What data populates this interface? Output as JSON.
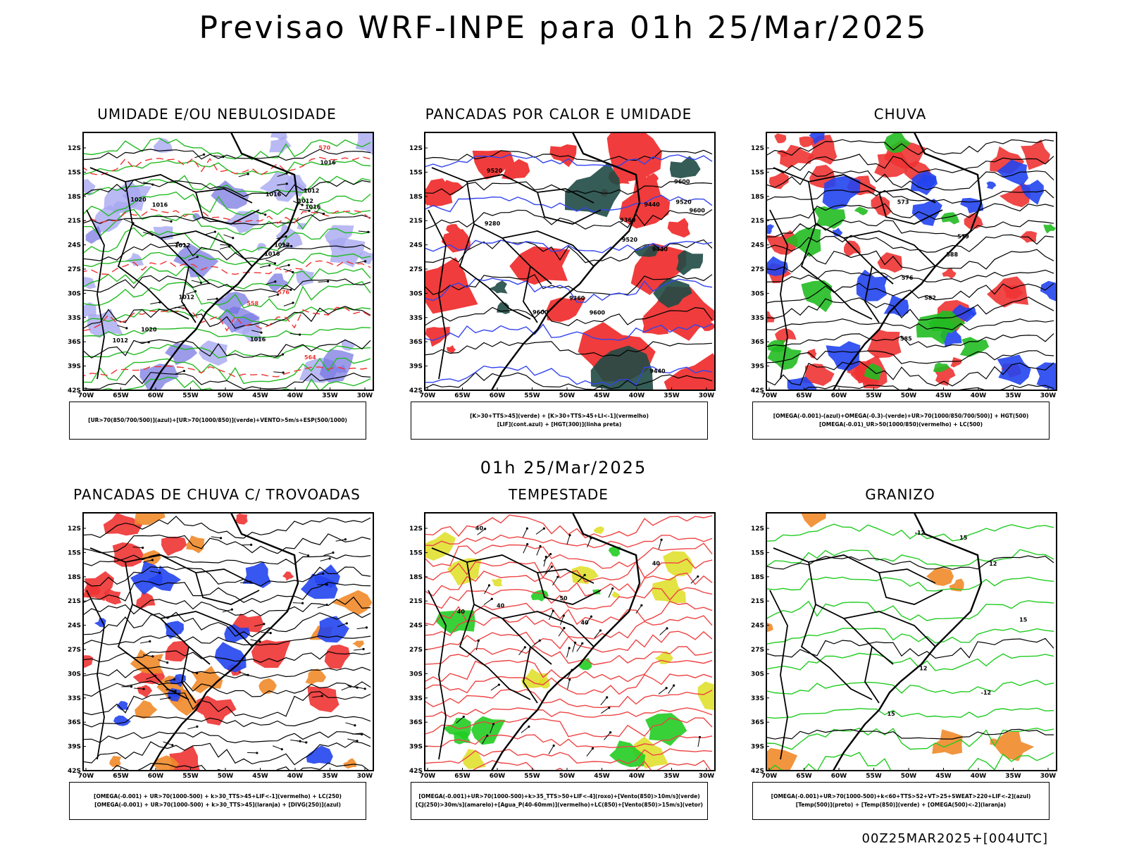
{
  "header": {
    "title": "Previsao WRF-INPE  para 01h 25/Mar/2025"
  },
  "middle": {
    "title": "01h 25/Mar/2025"
  },
  "footer": {
    "run": "00Z25MAR2025+[004UTC]"
  },
  "axes": {
    "lat_labels": [
      "12S",
      "15S",
      "18S",
      "21S",
      "24S",
      "27S",
      "30S",
      "33S",
      "36S",
      "39S",
      "42S"
    ],
    "lon_labels": [
      "70W",
      "65W",
      "60W",
      "55W",
      "50W",
      "45W",
      "40W",
      "35W",
      "30W"
    ]
  },
  "panels": [
    {
      "title": "UMIDADE E/OU NEBULOSIDADE",
      "legend": [
        "[UR>70(850/700/500)](azul)+[UR>70(1000/850)](verde)+VENTO>5m/s+ESP(500/1000)"
      ],
      "contour_labels": [
        "1016",
        "1012",
        "1020",
        "1012",
        "1016",
        "1012",
        "1016",
        "1012",
        "1016",
        "1016",
        "1012",
        "1020",
        "1016",
        "1012",
        "576",
        "570",
        "564",
        "558"
      ]
    },
    {
      "title": "PANCADAS POR CALOR E UMIDADE",
      "legend": [
        "[K>30+TTS>45](verde) + [K>30+TTS>45+LI<-1](vermelho)",
        "[LIF](cont.azul) + [HGT(300)](linha preta)"
      ],
      "contour_labels": [
        "9600",
        "9520",
        "9440",
        "9600",
        "9600",
        "9520",
        "9520",
        "9440",
        "9440",
        "9360",
        "9360",
        "9280",
        "9600"
      ]
    },
    {
      "title": "CHUVA",
      "legend": [
        "[OMEGA(-0.001)-(azul)+OMEGA(-0.3)-(verde)+UR>70(1000/850/700/500)] + HGT(500)",
        "[OMEGA(-0.01)_UR>50(1000/850)(vermelho) + LC(500)"
      ],
      "contour_labels": [
        "588",
        "585",
        "582",
        "579",
        "576",
        "573"
      ]
    },
    {
      "title": "PANCADAS DE CHUVA C/ TROVOADAS",
      "legend": [
        "[OMEGA(-0.001) + UR>70(1000-500) + k>30_TTS>45+LIF<-1](vermelho) + LC(250)",
        "[OMEGA(-0.001) + UR>70(1000-500) + k>30_TTS>45](laranja) + [DIVG(250)](azul)"
      ],
      "contour_labels": []
    },
    {
      "title": "TEMPESTADE",
      "legend": [
        "[OMEGA(-0.001)+UR>70(1000-500)+k>35_TTS>50+LIF<-4](roxo)+[Vento(850)>10m/s](verde)",
        "[CJ(250)>30m/s](amarelo)+[Agua_P(40-60mm)](vermelho)+LC(850)+[Vento(850)>15m/s](vetor)"
      ],
      "contour_labels": [
        "40",
        "40",
        "40",
        "40",
        "50",
        "40"
      ]
    },
    {
      "title": "GRANIZO",
      "legend": [
        "[OMEGA(-0.001)+UR>70(1000-500)+k<60+TTS>52+VT>25+SWEAT>220+LIF<-2](azul)",
        "[Temp(500)](preto) + [Temp(850)](verde) + [OMEGA(500)<-2](laranja)"
      ],
      "contour_labels": [
        "-12",
        "-12",
        "15",
        "15",
        "15",
        "12",
        "12"
      ]
    }
  ]
}
